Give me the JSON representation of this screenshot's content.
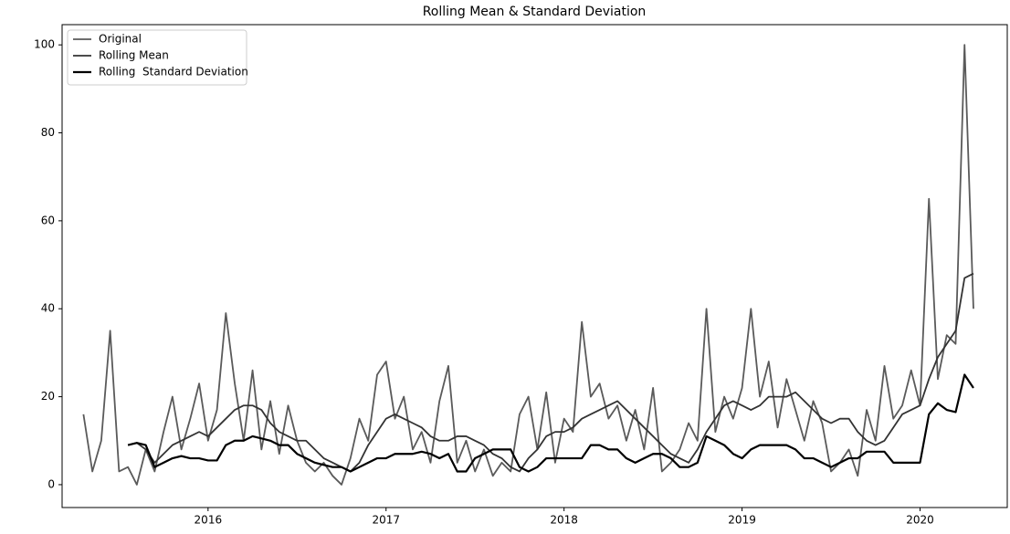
{
  "chart_data": {
    "type": "line",
    "title": "Rolling Mean & Standard Deviation",
    "x": [
      2015.3,
      2015.35,
      2015.4,
      2015.45,
      2015.5,
      2015.55,
      2015.6,
      2015.65,
      2015.7,
      2015.75,
      2015.8,
      2015.85,
      2015.9,
      2015.95,
      2016,
      2016.05,
      2016.1,
      2016.15,
      2016.2,
      2016.25,
      2016.3,
      2016.35,
      2016.4,
      2016.45,
      2016.5,
      2016.55,
      2016.6,
      2016.65,
      2016.7,
      2016.75,
      2016.8,
      2016.85,
      2016.9,
      2016.95,
      2017,
      2017.05,
      2017.1,
      2017.15,
      2017.2,
      2017.25,
      2017.3,
      2017.35,
      2017.4,
      2017.45,
      2017.5,
      2017.55,
      2017.6,
      2017.65,
      2017.7,
      2017.75,
      2017.8,
      2017.85,
      2017.9,
      2017.95,
      2018,
      2018.05,
      2018.1,
      2018.15,
      2018.2,
      2018.25,
      2018.3,
      2018.35,
      2018.4,
      2018.45,
      2018.5,
      2018.55,
      2018.6,
      2018.65,
      2018.7,
      2018.75,
      2018.8,
      2018.85,
      2018.9,
      2018.95,
      2019,
      2019.05,
      2019.1,
      2019.15,
      2019.2,
      2019.25,
      2019.3,
      2019.35,
      2019.4,
      2019.45,
      2019.5,
      2019.55,
      2019.6,
      2019.65,
      2019.7,
      2019.75,
      2019.8,
      2019.85,
      2019.9,
      2019.95,
      2020,
      2020.05,
      2020.1,
      2020.15,
      2020.2,
      2020.25,
      2020.3
    ],
    "series": [
      {
        "name": "Original",
        "color": "#5a5a5a",
        "width": 1.8,
        "values": [
          16,
          3,
          10,
          35,
          3,
          4,
          0,
          8,
          3,
          12,
          20,
          8,
          15,
          23,
          10,
          17,
          39,
          23,
          10,
          26,
          8,
          19,
          7,
          18,
          10,
          5,
          3,
          5,
          2,
          0,
          6,
          15,
          10,
          25,
          28,
          15,
          20,
          8,
          12,
          5,
          19,
          27,
          5,
          10,
          3,
          8,
          2,
          5,
          3,
          16,
          20,
          8,
          21,
          5,
          15,
          12,
          37,
          20,
          23,
          15,
          18,
          10,
          17,
          8,
          22,
          3,
          5,
          8,
          14,
          10,
          40,
          12,
          20,
          15,
          22,
          40,
          20,
          28,
          13,
          24,
          17,
          10,
          19,
          14,
          3,
          5,
          8,
          2,
          17,
          10,
          27,
          15,
          18,
          26,
          18,
          65,
          24,
          34,
          32,
          100,
          40
        ]
      },
      {
        "name": "Rolling Mean",
        "color": "#333333",
        "width": 1.8,
        "values": [
          null,
          null,
          null,
          null,
          null,
          9,
          9.5,
          8,
          5,
          7,
          9,
          10,
          11,
          12,
          11,
          13,
          15,
          17,
          18,
          18,
          17,
          14,
          12,
          11,
          10,
          10,
          8,
          6,
          5,
          4,
          3,
          5,
          9,
          12,
          15,
          16,
          15,
          14,
          13,
          11,
          10,
          10,
          11,
          11,
          10,
          9,
          7,
          6,
          4,
          3,
          6,
          8,
          11,
          12,
          12,
          13,
          15,
          16,
          17,
          18,
          19,
          17,
          15,
          13,
          11,
          9,
          7,
          6,
          5,
          8,
          12,
          15,
          18,
          19,
          18,
          17,
          18,
          20,
          20,
          20,
          21,
          19,
          17,
          15,
          14,
          15,
          15,
          12,
          10,
          9,
          10,
          13,
          16,
          17,
          18,
          24,
          29,
          32,
          35,
          47,
          48
        ]
      },
      {
        "name": "Rolling  Standard Deviation",
        "color": "#000000",
        "width": 2.2,
        "values": [
          null,
          null,
          null,
          null,
          null,
          9,
          9.5,
          9,
          4,
          5,
          6,
          6.5,
          6,
          6,
          5.5,
          5.5,
          9,
          10,
          10,
          11,
          10.5,
          10,
          9,
          9,
          7,
          6,
          5,
          4.5,
          4,
          4,
          3,
          4,
          5,
          6,
          6,
          7,
          7,
          7,
          7.5,
          7,
          6,
          7,
          3,
          3,
          6,
          7,
          8,
          8,
          8,
          4,
          3,
          4,
          6,
          6,
          6,
          6,
          6,
          9,
          9,
          8,
          8,
          6,
          5,
          6,
          7,
          7,
          6,
          4,
          4,
          5,
          11,
          10,
          9,
          7,
          6,
          8,
          9,
          9,
          9,
          9,
          8,
          6,
          6,
          5,
          4,
          5,
          6,
          6,
          7.5,
          7.5,
          7.5,
          5,
          5,
          5,
          5,
          16,
          18.5,
          17,
          16.5,
          25,
          22
        ]
      }
    ],
    "xlim": [
      2015.18,
      2020.49
    ],
    "xticks": [
      2016,
      2017,
      2018,
      2019,
      2020
    ],
    "ylim": [
      -5.2,
      104.6
    ],
    "yticks": [
      0,
      20,
      40,
      60,
      80,
      100
    ],
    "grid": false,
    "legend": "upper left"
  }
}
